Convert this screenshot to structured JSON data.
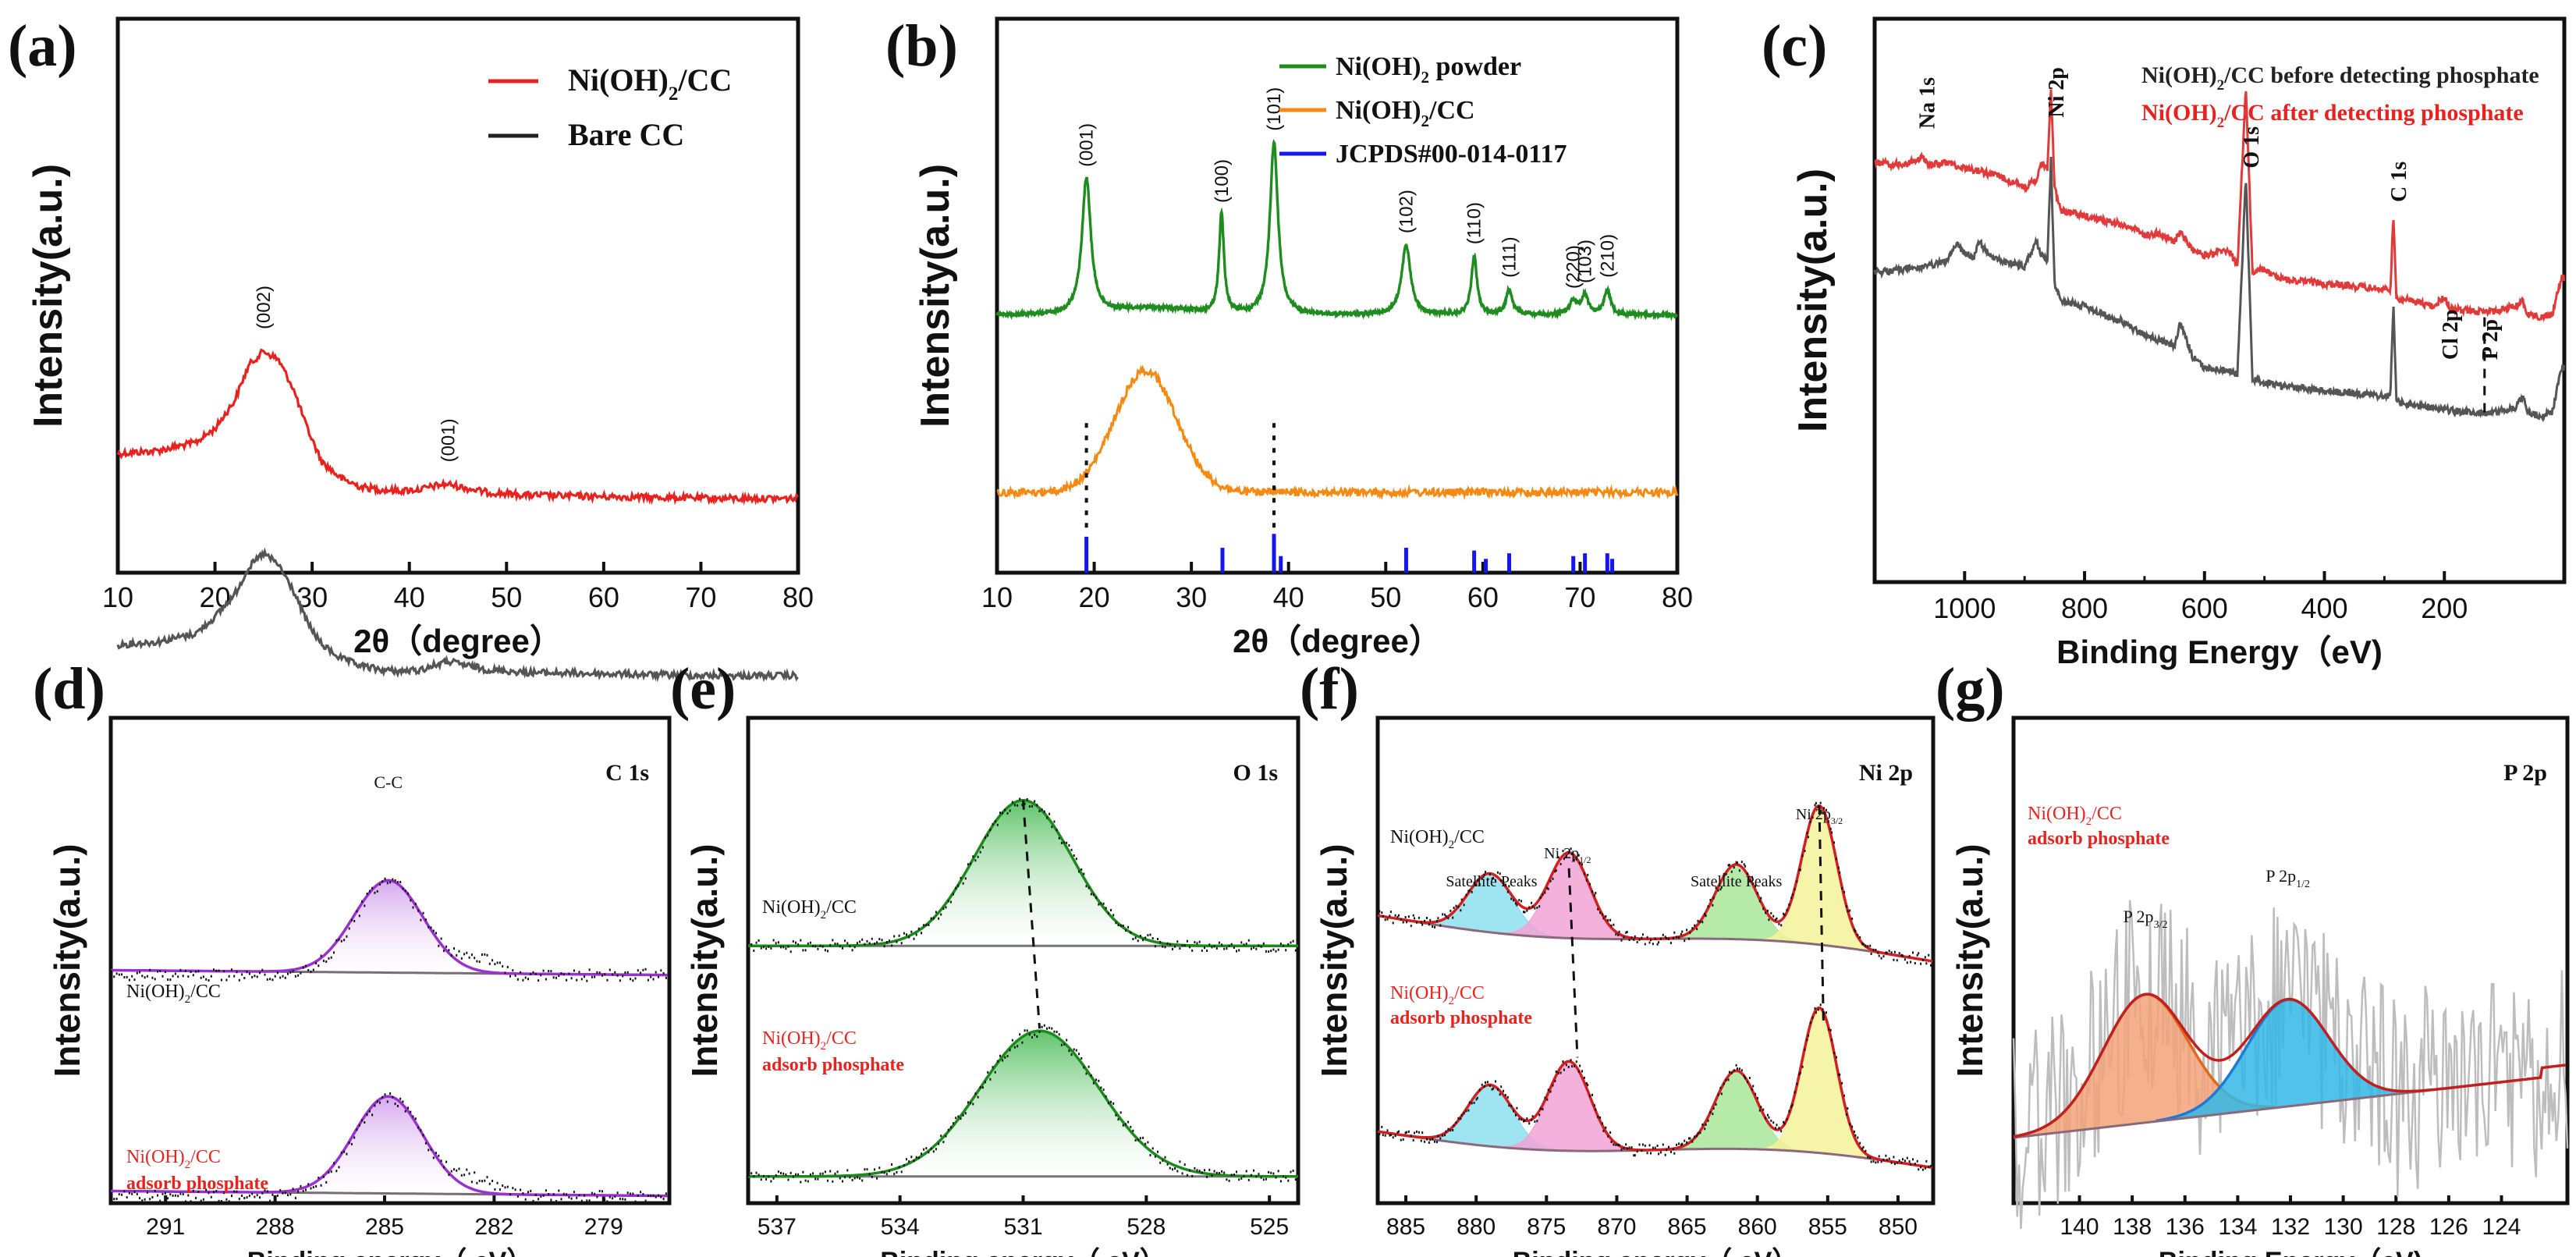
{
  "chart_data": [
    {
      "id": "a",
      "panel_label": "(a)",
      "type": "line",
      "xlabel": "2θ（degree）",
      "ylabel": "Intensity(a.u.)",
      "xlim": [
        10,
        80
      ],
      "xticks": [
        10,
        20,
        30,
        40,
        50,
        60,
        70,
        80
      ],
      "legend": [
        {
          "name": "Ni(OH)",
          "sub": "2",
          "post": "/CC",
          "color": "#e8231f"
        },
        {
          "name": "Bare CC",
          "sub": "",
          "post": "",
          "color": "#222222"
        }
      ],
      "peak_labels": [
        {
          "text": "(002)",
          "x": 25
        },
        {
          "text": "(001)",
          "x": 44
        }
      ],
      "series": [
        {
          "name": "Ni(OH)2/CC",
          "color": "#e8231f",
          "x": [
            10,
            14,
            18,
            20,
            22,
            23.5,
            25,
            26.5,
            28,
            29.5,
            31,
            33,
            35,
            37,
            39,
            41,
            43,
            44,
            46,
            48,
            52,
            58,
            65,
            72,
            80
          ],
          "y": [
            0.785,
            0.78,
            0.765,
            0.74,
            0.69,
            0.625,
            0.6,
            0.615,
            0.665,
            0.74,
            0.8,
            0.83,
            0.845,
            0.85,
            0.852,
            0.85,
            0.842,
            0.84,
            0.848,
            0.855,
            0.86,
            0.862,
            0.864,
            0.866,
            0.866
          ]
        },
        {
          "name": "Bare CC",
          "color": "#555555",
          "x": [
            10,
            14,
            18,
            20,
            22,
            23.5,
            25,
            26.5,
            28,
            29.5,
            31,
            33,
            35,
            37,
            39,
            41,
            43,
            44,
            46,
            48,
            52,
            58,
            65,
            72,
            80
          ],
          "y": [
            1.13,
            1.125,
            1.11,
            1.08,
            1.04,
            0.99,
            0.965,
            0.985,
            1.03,
            1.09,
            1.13,
            1.155,
            1.168,
            1.175,
            1.178,
            1.176,
            1.165,
            1.16,
            1.168,
            1.175,
            1.18,
            1.182,
            1.184,
            1.186,
            1.186
          ]
        }
      ]
    },
    {
      "id": "b",
      "panel_label": "(b)",
      "type": "line",
      "xlabel": "2θ（degree）",
      "ylabel": "Intensity(a.u.)",
      "xlim": [
        10,
        80
      ],
      "xticks": [
        10,
        20,
        30,
        40,
        50,
        60,
        70,
        80
      ],
      "legend": [
        {
          "name": "Ni(OH)",
          "sub": "2",
          "post": " powder",
          "color": "#1e8c1e"
        },
        {
          "name": "Ni(OH)",
          "sub": "2",
          "post": "/CC",
          "color": "#f58a12"
        },
        {
          "name": "JCPDS#00-014-0117",
          "sub": "",
          "post": "",
          "color": "#1515ee"
        }
      ],
      "powder_peaks": [
        {
          "label": "(001)",
          "x": 19.2,
          "h": 0.245,
          "w": 0.55
        },
        {
          "label": "(100)",
          "x": 33.1,
          "h": 0.18,
          "w": 0.3
        },
        {
          "label": "(101)",
          "x": 38.5,
          "h": 0.31,
          "w": 0.5
        },
        {
          "label": "(102)",
          "x": 52.1,
          "h": 0.125,
          "w": 0.55
        },
        {
          "label": "(110)",
          "x": 59.1,
          "h": 0.105,
          "w": 0.35
        },
        {
          "label": "(111)",
          "x": 62.7,
          "h": 0.045,
          "w": 0.4
        },
        {
          "label": "(220)",
          "x": 69.3,
          "h": 0.025,
          "w": 0.5
        },
        {
          "label": "(103)",
          "x": 70.5,
          "h": 0.035,
          "w": 0.4
        },
        {
          "label": "(210)",
          "x": 72.8,
          "h": 0.045,
          "w": 0.4
        }
      ],
      "powder_baseline": 0.535,
      "cc_peak": {
        "x": 25.3,
        "h": 0.22,
        "w": 3.2,
        "baseline": 0.855
      },
      "jcpds_lines": [
        19.2,
        33.2,
        38.5,
        39.2,
        52.1,
        59.1,
        60.3,
        62.7,
        69.3,
        70.5,
        72.8,
        73.3
      ],
      "jcpds_heights": [
        0.065,
        0.045,
        0.07,
        0.03,
        0.045,
        0.04,
        0.025,
        0.035,
        0.03,
        0.035,
        0.035,
        0.025
      ],
      "dotted_markers": [
        19.2,
        38.5
      ]
    },
    {
      "id": "c",
      "panel_label": "(c)",
      "type": "line",
      "xlabel": "Binding Energy（eV)",
      "ylabel": "Intensity(a.u.)",
      "xlim": [
        1150,
        0
      ],
      "xticks": [
        1000,
        800,
        600,
        400,
        200
      ],
      "legend": [
        {
          "name": "Ni(OH)",
          "sub": "2",
          "post": "/CC before detecting phosphate",
          "color": "#222222"
        },
        {
          "name": "Ni(OH)",
          "sub": "2",
          "post": "/CC after detecting phosphate",
          "color": "#e8231f"
        }
      ],
      "peak_labels": [
        {
          "text": "Na 1s",
          "x": 1071
        },
        {
          "text": "Ni 2p",
          "x": 856
        },
        {
          "text": "O 1s",
          "x": 531
        },
        {
          "text": "C 1s",
          "x": 285
        },
        {
          "text": "Cl 2p",
          "x": 199
        },
        {
          "text": "P 2p",
          "x": 133
        }
      ],
      "series": [
        {
          "name": "after detecting phosphate",
          "color": "#e03a3a",
          "x": [
            1150,
            1100,
            1071,
            1060,
            1030,
            1000,
            975,
            960,
            940,
            900,
            880,
            872,
            862,
            856,
            850,
            840,
            800,
            780,
            760,
            740,
            720,
            700,
            680,
            650,
            640,
            620,
            600,
            560,
            545,
            531,
            520,
            500,
            480,
            450,
            400,
            350,
            300,
            290,
            285,
            280,
            260,
            220,
            199,
            190,
            150,
            120,
            80,
            70,
            60,
            40,
            20,
            5
          ],
          "y": [
            0.255,
            0.26,
            0.245,
            0.26,
            0.255,
            0.265,
            0.27,
            0.275,
            0.28,
            0.3,
            0.285,
            0.26,
            0.265,
            0.12,
            0.3,
            0.34,
            0.35,
            0.355,
            0.36,
            0.365,
            0.37,
            0.385,
            0.38,
            0.395,
            0.38,
            0.41,
            0.42,
            0.41,
            0.44,
            0.12,
            0.45,
            0.445,
            0.46,
            0.465,
            0.47,
            0.475,
            0.48,
            0.48,
            0.35,
            0.495,
            0.5,
            0.51,
            0.495,
            0.515,
            0.52,
            0.52,
            0.51,
            0.5,
            0.525,
            0.53,
            0.525,
            0.46
          ]
        },
        {
          "name": "before detecting phosphate",
          "color": "#555555",
          "x": [
            1150,
            1100,
            1060,
            1030,
            1015,
            1000,
            985,
            975,
            960,
            940,
            900,
            880,
            872,
            862,
            856,
            850,
            840,
            800,
            780,
            760,
            740,
            720,
            700,
            680,
            650,
            640,
            620,
            600,
            560,
            545,
            531,
            520,
            500,
            480,
            450,
            400,
            350,
            300,
            290,
            285,
            280,
            260,
            220,
            190,
            150,
            120,
            80,
            70,
            60,
            40,
            20,
            5
          ],
          "y": [
            0.45,
            0.445,
            0.44,
            0.43,
            0.4,
            0.415,
            0.425,
            0.395,
            0.42,
            0.43,
            0.44,
            0.395,
            0.42,
            0.43,
            0.25,
            0.47,
            0.5,
            0.51,
            0.52,
            0.53,
            0.535,
            0.55,
            0.56,
            0.57,
            0.58,
            0.54,
            0.6,
            0.62,
            0.625,
            0.63,
            0.28,
            0.64,
            0.645,
            0.65,
            0.655,
            0.66,
            0.665,
            0.67,
            0.67,
            0.5,
            0.68,
            0.685,
            0.69,
            0.695,
            0.7,
            0.7,
            0.69,
            0.67,
            0.7,
            0.705,
            0.7,
            0.62
          ]
        }
      ]
    },
    {
      "id": "d",
      "panel_label": "(d)",
      "type": "xps-fit",
      "xlabel": "Binding energy（ eV）",
      "ylabel": "Intensity(a.u.)",
      "xlim": [
        292.5,
        277.2
      ],
      "xticks": [
        291,
        288,
        285,
        282,
        279
      ],
      "corner_label": "C 1s",
      "annotations": [
        {
          "text": "C-C",
          "x": 284.9
        }
      ],
      "sample_labels": [
        {
          "text1": "Ni(OH)",
          "sub": "2",
          "text2": "/CC",
          "extra": "",
          "color": "#111111"
        },
        {
          "text1": "Ni(OH)",
          "sub": "2",
          "text2": "/CC",
          "extra": "adsorb phosphate",
          "color": "#e8231f"
        }
      ],
      "peaks": [
        {
          "center": 284.9,
          "sigma": 0.95,
          "color": "#9b30d0",
          "fill": "#d6a8ee"
        }
      ]
    },
    {
      "id": "e",
      "panel_label": "(e)",
      "type": "xps-fit",
      "xlabel": "Binding energy（ eV）",
      "ylabel": "Intensity(a.u.)",
      "xlim": [
        537.7,
        524.3
      ],
      "xticks": [
        537,
        534,
        531,
        528,
        525
      ],
      "corner_label": "O 1s",
      "sample_labels": [
        {
          "text1": "Ni(OH)",
          "sub": "2",
          "text2": "/CC",
          "extra": "",
          "color": "#111111"
        },
        {
          "text1": "Ni(OH)",
          "sub": "2",
          "text2": "/CC",
          "extra": "adsorb phosphate",
          "color": "#e8231f"
        }
      ],
      "peaks_top": [
        {
          "center": 531.0,
          "sigma": 1.2,
          "color": "#1a8a1a",
          "fill": "#5fc36a"
        }
      ],
      "peaks_bottom": [
        {
          "center": 530.6,
          "sigma": 1.45,
          "color": "#1a8a1a",
          "fill": "#5fc36a"
        }
      ]
    },
    {
      "id": "f",
      "panel_label": "(f)",
      "type": "xps-fit",
      "xlabel": "Binding energy（ eV）",
      "ylabel": "Intensity(a.u.)",
      "xlim": [
        887,
        847.5
      ],
      "xticks": [
        885,
        880,
        875,
        870,
        865,
        860,
        855,
        850
      ],
      "corner_label": "Ni 2p",
      "annotations": [
        {
          "text": "Satellite Peaks",
          "x": 878.9
        },
        {
          "text": "Satellite Peaks",
          "x": 861.5
        },
        {
          "text": "Ni 2p",
          "sub": "1/2",
          "x": 873.5
        },
        {
          "text": "Ni 2p",
          "sub": "3/2",
          "x": 855.6
        }
      ],
      "sample_labels": [
        {
          "text1": "Ni(OH)",
          "sub": "2",
          "text2": "/CC",
          "extra": "",
          "color": "#111111"
        },
        {
          "text1": "Ni(OH)",
          "sub": "2",
          "text2": "/CC",
          "extra": "adsorb phosphate",
          "color": "#e8231f"
        }
      ],
      "peaks": [
        {
          "center": 879.0,
          "sigma": 1.6,
          "h": 0.55,
          "fill": "#8ee0ee"
        },
        {
          "center": 873.4,
          "sigma": 1.5,
          "h": 0.8,
          "fill": "#f2a3d6"
        },
        {
          "center": 861.5,
          "sigma": 1.5,
          "h": 0.7,
          "fill": "#a8e69a"
        },
        {
          "center": 855.6,
          "sigma": 1.25,
          "h": 1.3,
          "fill": "#f4f29a"
        }
      ]
    },
    {
      "id": "g",
      "panel_label": "(g)",
      "type": "xps-fit",
      "xlabel": "Binding Energy（eV)",
      "ylabel": "Intensity(a.u.)",
      "xlim": [
        142.5,
        121.5
      ],
      "xticks": [
        140,
        138,
        136,
        134,
        132,
        130,
        128,
        126,
        124
      ],
      "corner_label": "P 2p",
      "annotations": [
        {
          "text": "P 2p",
          "sub": "3/2",
          "x": 137.5
        },
        {
          "text": "P 2p",
          "sub": "1/2",
          "x": 132.1
        }
      ],
      "sample_labels": [
        {
          "text1": "Ni(OH)",
          "sub": "2",
          "text2": "/CC",
          "extra": "adsorb phosphate",
          "color": "#e8231f"
        }
      ],
      "peaks": [
        {
          "center": 137.5,
          "sigma": 1.6,
          "h": 0.48,
          "color": "#e06a1a",
          "fill": "#f3a27a"
        },
        {
          "center": 132.1,
          "sigma": 1.55,
          "h": 0.4,
          "color": "#1d7bd6",
          "fill": "#33b8e8"
        }
      ]
    }
  ]
}
